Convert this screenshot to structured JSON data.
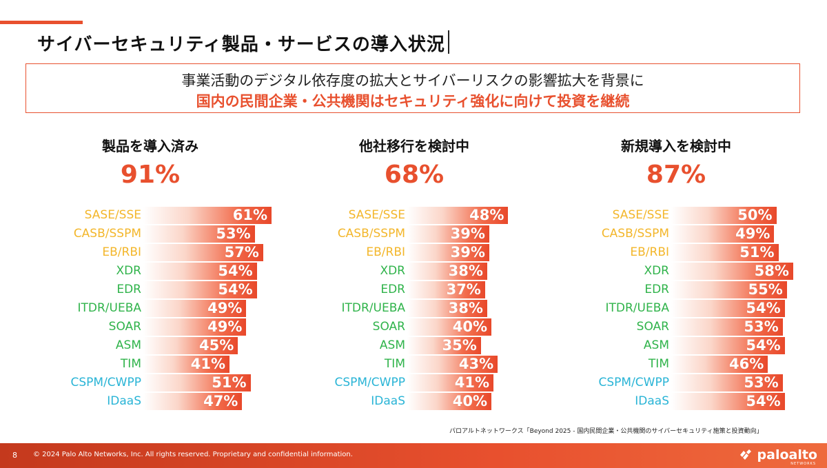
{
  "page": {
    "title": "サイバーセキュリティ製品・サービスの導入状況",
    "summary_line1": "事業活動のデジタル依存度の拡大とサイバーリスクの影響拡大を背景に",
    "summary_line2": "国内の民間企業・公共機関はセキュリティ強化に向けて投資を継続",
    "source": "パロアルトネットワークス「Beyond 2025 - 国内民間企業・公共機関のサイバーセキュリティ施策と投資動向」",
    "footer_page": "8",
    "footer_copyright": "© 2024 Palo Alto Networks, Inc. All rights reserved. Proprietary and confidential information.",
    "logo_text": "paloalto",
    "logo_sub": "NETWORKS"
  },
  "colors": {
    "accent": "#e8502e",
    "category_colors": [
      "#f3b62a",
      "#f3b62a",
      "#f3b62a",
      "#2fb34a",
      "#2fb34a",
      "#2fb34a",
      "#2fb34a",
      "#2fb34a",
      "#2fb34a",
      "#29b4d6",
      "#29b4d6"
    ]
  },
  "chart_data": [
    {
      "type": "bar",
      "title": "製品を導入済み",
      "headline": "91%",
      "categories": [
        "SASE/SSE",
        "CASB/SSPM",
        "EB/RBI",
        "XDR",
        "EDR",
        "ITDR/UEBA",
        "SOAR",
        "ASM",
        "TIM",
        "CSPM/CWPP",
        "IDaaS"
      ],
      "values": [
        61,
        53,
        57,
        54,
        54,
        49,
        49,
        45,
        41,
        51,
        47
      ],
      "value_labels": [
        "61%",
        "53%",
        "57%",
        "54%",
        "54%",
        "49%",
        "49%",
        "45%",
        "41%",
        "51%",
        "47%"
      ]
    },
    {
      "type": "bar",
      "title": "他社移行を検討中",
      "headline": "68%",
      "categories": [
        "SASE/SSE",
        "CASB/SSPM",
        "EB/RBI",
        "XDR",
        "EDR",
        "ITDR/UEBA",
        "SOAR",
        "ASM",
        "TIM",
        "CSPM/CWPP",
        "IDaaS"
      ],
      "values": [
        48,
        39,
        39,
        38,
        37,
        38,
        40,
        35,
        43,
        41,
        40
      ],
      "value_labels": [
        "48%",
        "39%",
        "39%",
        "38%",
        "37%",
        "38%",
        "40%",
        "35%",
        "43%",
        "41%",
        "40%"
      ]
    },
    {
      "type": "bar",
      "title": "新規導入を検討中",
      "headline": "87%",
      "categories": [
        "SASE/SSE",
        "CASB/SSPM",
        "EB/RBI",
        "XDR",
        "EDR",
        "ITDR/UEBA",
        "SOAR",
        "ASM",
        "TIM",
        "CSPM/CWPP",
        "IDaaS"
      ],
      "values": [
        50,
        49,
        51,
        58,
        55,
        54,
        53,
        54,
        46,
        53,
        54
      ],
      "value_labels": [
        "50%",
        "49%",
        "51%",
        "58%",
        "55%",
        "54%",
        "53%",
        "54%",
        "46%",
        "53%",
        "54%"
      ]
    }
  ]
}
